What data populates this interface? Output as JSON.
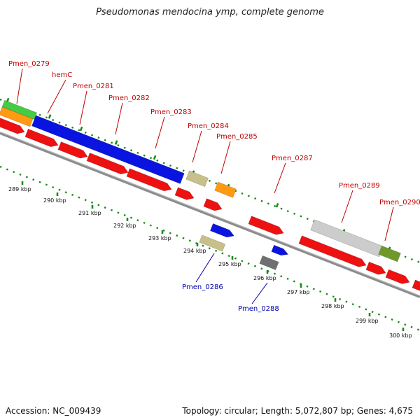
{
  "title": "Pseudomonas mendocina ymp, complete genome",
  "footer": {
    "accession": "Accession: NC_009439",
    "topology": "Topology: circular; Length: 5,072,807 bp; Genes: 4,675"
  },
  "ticks": [
    "289 kbp",
    "290 kbp",
    "291 kbp",
    "292 kbp",
    "293 kbp",
    "294 kbp",
    "295 kbp",
    "296 kbp",
    "297 kbp",
    "298 kbp",
    "299 kbp",
    "300 kbp"
  ],
  "genes": [
    {
      "name": "Pmen_0279",
      "strand": "top"
    },
    {
      "name": "hemC",
      "strand": "top"
    },
    {
      "name": "Pmen_0281",
      "strand": "top"
    },
    {
      "name": "Pmen_0282",
      "strand": "top"
    },
    {
      "name": "Pmen_0283",
      "strand": "top"
    },
    {
      "name": "Pmen_0284",
      "strand": "top"
    },
    {
      "name": "Pmen_0285",
      "strand": "top"
    },
    {
      "name": "Pmen_0287",
      "strand": "top"
    },
    {
      "name": "Pmen_0289",
      "strand": "top"
    },
    {
      "name": "Pmen_0290",
      "strand": "top"
    },
    {
      "name": "Pmen_0286",
      "strand": "bottom"
    },
    {
      "name": "Pmen_0288",
      "strand": "bottom"
    }
  ],
  "colors": {
    "cds": "#ee1111",
    "blue": "#0a14e0",
    "khaki": "#c8c08a",
    "orange": "#ff9a12",
    "green": "#44cc44",
    "gray": "#cccccc",
    "olive": "#6f9a2a",
    "darkgray": "#707070",
    "backbone": "#8c8c8c",
    "dots": "#1a8a1a"
  }
}
